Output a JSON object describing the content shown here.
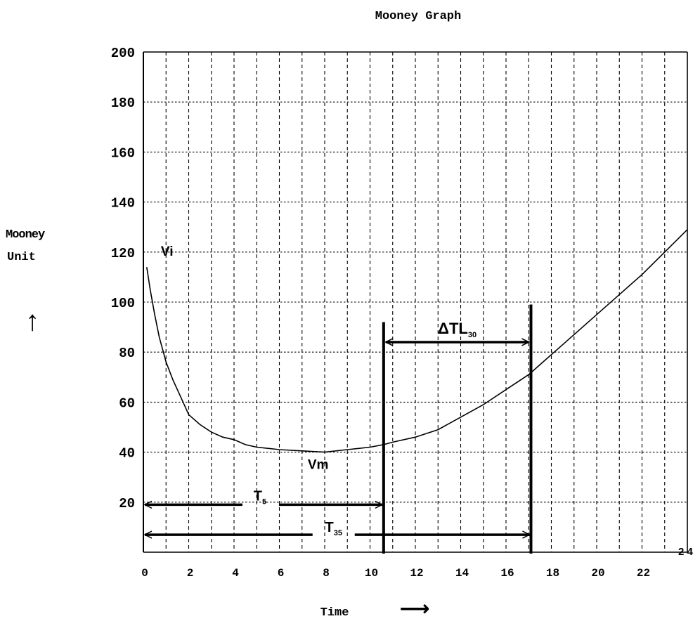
{
  "chart_data": {
    "type": "line",
    "title": "Mooney Graph",
    "ylabel_line1": "Mooney",
    "ylabel_line2": "Unit",
    "ylabel_arrow": "↑",
    "xlabel": "Time",
    "xlabel_arrow": "⟶",
    "xlim": [
      0,
      24
    ],
    "ylim": [
      0,
      200
    ],
    "grid": true,
    "y_ticks": [
      20,
      40,
      60,
      80,
      100,
      120,
      140,
      160,
      180,
      200
    ],
    "x_ticks": [
      0,
      2,
      4,
      6,
      8,
      10,
      12,
      14,
      16,
      18,
      20,
      22
    ],
    "x_tick_labels": [
      "0",
      "2",
      "4",
      "6",
      "8",
      "10",
      "12",
      "14",
      "16",
      "18",
      "20",
      "22"
    ],
    "x_end_label": "2 4",
    "series": [
      {
        "x": [
          0.15,
          0.3,
          0.5,
          0.7,
          1.0,
          1.3,
          1.6,
          2.0,
          2.5,
          3.0,
          3.5,
          4.0,
          4.5,
          5.0,
          6.0,
          7.0,
          8.0,
          9.0,
          10.0,
          10.6,
          11.0,
          12.0,
          13.0,
          14.0,
          15.0,
          16.0,
          17.0,
          17.5,
          18.0,
          19.0,
          20.0,
          21.0,
          22.0,
          23.0,
          24.0
        ],
        "y": [
          114,
          105,
          95,
          86,
          76,
          69,
          63,
          55,
          51,
          48,
          46,
          45,
          43,
          42,
          41,
          40.5,
          40,
          41,
          42,
          43,
          44,
          46,
          49,
          54,
          59,
          65,
          71,
          75,
          79,
          87,
          95,
          103,
          111,
          120,
          129
        ]
      }
    ],
    "annotations": {
      "vi": {
        "label": "Vi",
        "x": 0.4,
        "y": 118
      },
      "vm": {
        "label": "Vm",
        "x": 7.5,
        "y": 35
      },
      "marker_lines": [
        {
          "x": 10.6,
          "y_top": 92
        },
        {
          "x": 17.1,
          "y_top": 99
        }
      ],
      "t5": {
        "label": "T",
        "sub": "5",
        "x_start": 0,
        "x_end": 10.6,
        "y": 19
      },
      "t35": {
        "label": "T",
        "sub": "35",
        "x_start": 0,
        "x_end": 17.1,
        "y": 7
      },
      "delta_tl30": {
        "label": "ΔTL",
        "sub": "30",
        "x_start": 10.6,
        "x_end": 17.1,
        "y": 84
      }
    }
  }
}
